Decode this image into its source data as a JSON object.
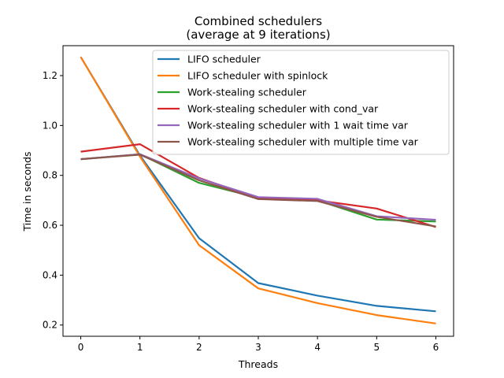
{
  "chart_data": {
    "type": "line",
    "title": "Combined schedulers",
    "subtitle": "(average at 9 iterations)",
    "xlabel": "Threads",
    "ylabel": "Time in seconds",
    "x": [
      0,
      1,
      2,
      3,
      4,
      5,
      6
    ],
    "xlim": [
      -0.3,
      6.3
    ],
    "ylim": [
      0.155,
      1.32
    ],
    "xticks": [
      0,
      1,
      2,
      3,
      4,
      5,
      6
    ],
    "yticks": [
      0.2,
      0.4,
      0.6,
      0.8,
      1.0,
      1.2
    ],
    "ytick_labels": [
      "0.2",
      "0.4",
      "0.6",
      "0.8",
      "1.0",
      "1.2"
    ],
    "grid": false,
    "legend_position": "upper-right",
    "series": [
      {
        "name": "LIFO scheduler",
        "color": "#1f77b4",
        "values": [
          1.275,
          0.88,
          0.548,
          0.368,
          0.318,
          0.277,
          0.255
        ]
      },
      {
        "name": "LIFO scheduler with spinlock",
        "color": "#ff7f0e",
        "values": [
          1.275,
          0.875,
          0.52,
          0.347,
          0.288,
          0.24,
          0.206
        ]
      },
      {
        "name": "Work-stealing scheduler",
        "color": "#2ca02c",
        "values": [
          0.865,
          0.885,
          0.77,
          0.71,
          0.7,
          0.623,
          0.615
        ]
      },
      {
        "name": "Work-stealing scheduler with cond_var",
        "color": "#d62728",
        "values": [
          0.895,
          0.925,
          0.79,
          0.707,
          0.7,
          0.667,
          0.593
        ]
      },
      {
        "name": "Work-stealing scheduler with 1 wait time var",
        "color": "#9467bd",
        "values": [
          0.865,
          0.885,
          0.788,
          0.713,
          0.706,
          0.636,
          0.622
        ]
      },
      {
        "name": "Work-stealing scheduler with multiple time var",
        "color": "#8c564b",
        "values": [
          0.865,
          0.883,
          0.78,
          0.705,
          0.697,
          0.634,
          0.595
        ]
      }
    ]
  }
}
